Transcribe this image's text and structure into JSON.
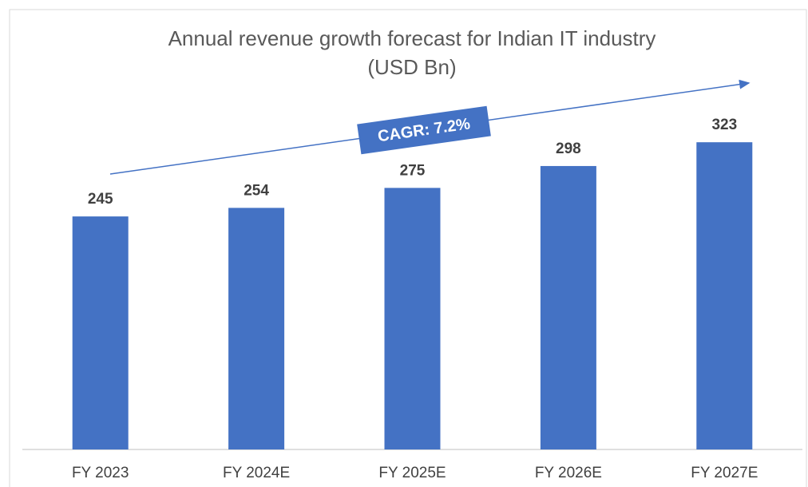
{
  "chart_data": {
    "type": "bar",
    "title": "Annual revenue growth forecast for Indian IT industry",
    "subtitle": "(USD Bn)",
    "annotation": "CAGR: 7.2%",
    "categories": [
      "FY 2023",
      "FY 2024E",
      "FY 2025E",
      "FY 2026E",
      "FY 2027E"
    ],
    "values": [
      245,
      254,
      275,
      298,
      323
    ],
    "color": "#4472c4",
    "ylim": [
      0,
      350
    ]
  }
}
